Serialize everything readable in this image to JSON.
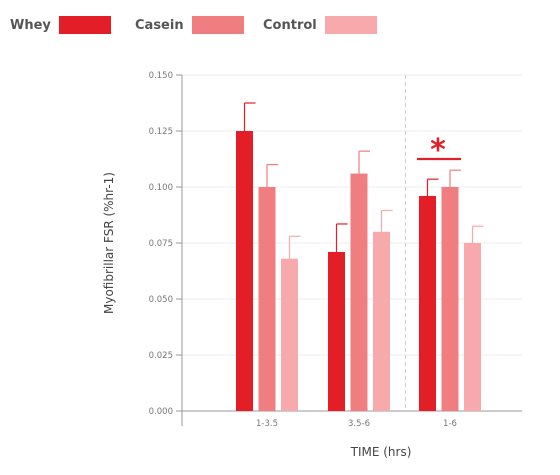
{
  "chart_data": {
    "type": "bar",
    "title": "",
    "xlabel": "TIME (hrs)",
    "ylabel": "Myofibrillar FSR (%hr-1)",
    "ylim": [
      0,
      0.15
    ],
    "yticks": [
      "0.000",
      "0.025",
      "0.050",
      "0.075",
      "0.100",
      "0.125",
      "0.150"
    ],
    "grid": true,
    "legend_position": "top",
    "categories": [
      "1-3.5",
      "3.5-6",
      "1-6"
    ],
    "series": [
      {
        "name": "Whey",
        "color": "#e41e26",
        "values": [
          0.125,
          0.071,
          0.096
        ],
        "errors": [
          0.0125,
          0.0125,
          0.0075
        ]
      },
      {
        "name": "Casein",
        "color": "#f07d80",
        "values": [
          0.1,
          0.106,
          0.1
        ],
        "errors": [
          0.01,
          0.01,
          0.0075
        ]
      },
      {
        "name": "Control",
        "color": "#f8a9ab",
        "values": [
          0.068,
          0.08,
          0.075
        ],
        "errors": [
          0.01,
          0.0095,
          0.0075
        ]
      }
    ],
    "annotations": [
      {
        "text": "*",
        "category": "1-6",
        "color": "#e41e26"
      }
    ]
  }
}
